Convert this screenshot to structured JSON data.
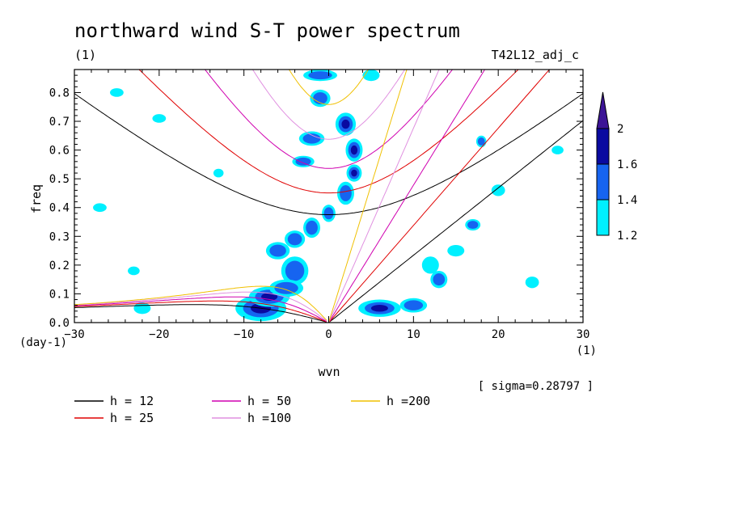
{
  "chart_data": {
    "type": "heatmap",
    "title": "northward wind S-T power spectrum",
    "units_label": "(1)",
    "run_label": "T42L12_adj_c",
    "xlabel": "wvn",
    "xunit": "(1)",
    "ylabel": "freq",
    "yunit": "(day-1)",
    "sigma_text": "[ sigma=0.28797 ]",
    "xlim": [
      -30,
      30
    ],
    "ylim": [
      0,
      0.88
    ],
    "xticks": [
      -30,
      -20,
      -10,
      0,
      10,
      20,
      30
    ],
    "yticks": [
      0.0,
      0.1,
      0.2,
      0.3,
      0.4,
      0.5,
      0.6,
      0.7,
      0.8
    ],
    "colorbar": {
      "levels": [
        "1.2",
        "1.4",
        "1.6",
        "2"
      ],
      "colors": [
        "#00f0ff",
        "#1664f0",
        "#0a0aa0",
        "#3c1496"
      ]
    },
    "dispersion_curves": [
      {
        "name": "h = 12",
        "h": 12,
        "color": "#000000"
      },
      {
        "name": "h = 25",
        "h": 25,
        "color": "#e00000"
      },
      {
        "name": "h = 50",
        "h": 50,
        "color": "#d000b0"
      },
      {
        "name": "h =100",
        "h": 100,
        "color": "#e090e0"
      },
      {
        "name": "h =200",
        "h": 200,
        "color": "#f0c000"
      }
    ],
    "power_regions": [
      {
        "x": -8,
        "y": 0.05,
        "level": 3,
        "rx": 3.0,
        "ry": 0.045
      },
      {
        "x": -7,
        "y": 0.09,
        "level": 3,
        "rx": 2.4,
        "ry": 0.035
      },
      {
        "x": -4,
        "y": 0.18,
        "level": 2,
        "rx": 1.6,
        "ry": 0.05
      },
      {
        "x": -5,
        "y": 0.12,
        "level": 2,
        "rx": 2.0,
        "ry": 0.03
      },
      {
        "x": -6,
        "y": 0.25,
        "level": 2,
        "rx": 1.4,
        "ry": 0.03
      },
      {
        "x": -4,
        "y": 0.29,
        "level": 2,
        "rx": 1.2,
        "ry": 0.03
      },
      {
        "x": -2,
        "y": 0.33,
        "level": 2,
        "rx": 1.0,
        "ry": 0.035
      },
      {
        "x": 0,
        "y": 0.38,
        "level": 2,
        "rx": 0.8,
        "ry": 0.03
      },
      {
        "x": 2,
        "y": 0.45,
        "level": 2,
        "rx": 1.0,
        "ry": 0.04
      },
      {
        "x": 3,
        "y": 0.52,
        "level": 3,
        "rx": 0.9,
        "ry": 0.03
      },
      {
        "x": 3,
        "y": 0.6,
        "level": 3,
        "rx": 1.0,
        "ry": 0.04
      },
      {
        "x": 2,
        "y": 0.69,
        "level": 3,
        "rx": 1.2,
        "ry": 0.04
      },
      {
        "x": -2,
        "y": 0.64,
        "level": 2,
        "rx": 1.5,
        "ry": 0.025
      },
      {
        "x": -3,
        "y": 0.56,
        "level": 2,
        "rx": 1.3,
        "ry": 0.02
      },
      {
        "x": -1,
        "y": 0.78,
        "level": 2,
        "rx": 1.2,
        "ry": 0.03
      },
      {
        "x": -1,
        "y": 0.86,
        "level": 2,
        "rx": 2.0,
        "ry": 0.02
      },
      {
        "x": 6,
        "y": 0.05,
        "level": 3,
        "rx": 2.5,
        "ry": 0.03
      },
      {
        "x": 10,
        "y": 0.06,
        "level": 2,
        "rx": 1.6,
        "ry": 0.025
      },
      {
        "x": 13,
        "y": 0.15,
        "level": 2,
        "rx": 1.0,
        "ry": 0.03
      },
      {
        "x": 12,
        "y": 0.2,
        "level": 1,
        "rx": 1.0,
        "ry": 0.03
      },
      {
        "x": 17,
        "y": 0.34,
        "level": 2,
        "rx": 0.9,
        "ry": 0.02
      },
      {
        "x": 15,
        "y": 0.25,
        "level": 1,
        "rx": 1.0,
        "ry": 0.02
      },
      {
        "x": 18,
        "y": 0.63,
        "level": 2,
        "rx": 0.6,
        "ry": 0.02
      },
      {
        "x": -22,
        "y": 0.05,
        "level": 1,
        "rx": 1.0,
        "ry": 0.02
      },
      {
        "x": -25,
        "y": 0.8,
        "level": 1,
        "rx": 0.8,
        "ry": 0.015
      },
      {
        "x": -20,
        "y": 0.71,
        "level": 1,
        "rx": 0.8,
        "ry": 0.015
      },
      {
        "x": -13,
        "y": 0.52,
        "level": 1,
        "rx": 0.6,
        "ry": 0.015
      },
      {
        "x": -23,
        "y": 0.18,
        "level": 1,
        "rx": 0.7,
        "ry": 0.015
      },
      {
        "x": -27,
        "y": 0.4,
        "level": 1,
        "rx": 0.8,
        "ry": 0.015
      },
      {
        "x": 5,
        "y": 0.86,
        "level": 1,
        "rx": 1.0,
        "ry": 0.02
      },
      {
        "x": 20,
        "y": 0.46,
        "level": 1,
        "rx": 0.8,
        "ry": 0.02
      },
      {
        "x": 24,
        "y": 0.14,
        "level": 1,
        "rx": 0.8,
        "ry": 0.02
      },
      {
        "x": 27,
        "y": 0.6,
        "level": 1,
        "rx": 0.7,
        "ry": 0.015
      }
    ]
  }
}
